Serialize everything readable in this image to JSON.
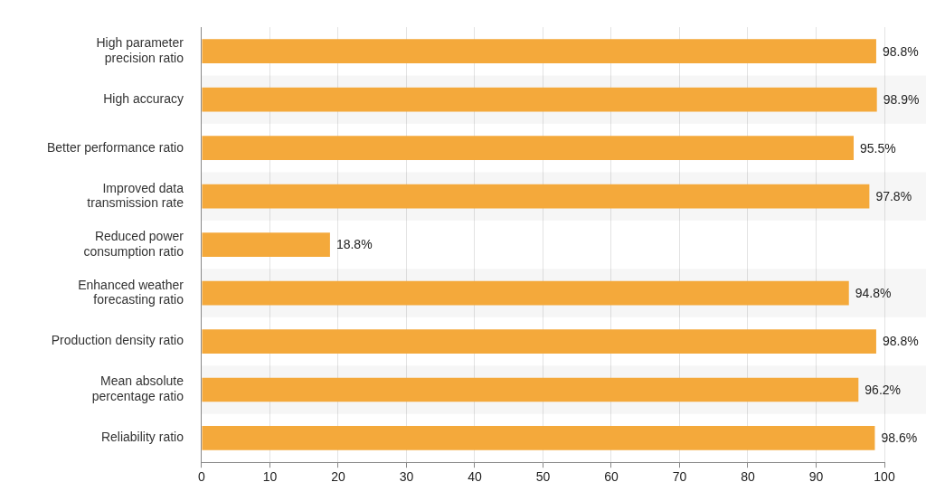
{
  "chart_data": {
    "type": "bar",
    "orientation": "horizontal",
    "categories": [
      "High parameter precision ratio",
      "High accuracy",
      "Better performance ratio",
      "Improved data transmission rate",
      "Reduced power consumption ratio",
      "Enhanced weather forecasting ratio",
      "Production density ratio",
      "Mean absolute percentage ratio",
      "Reliability ratio"
    ],
    "values": [
      98.8,
      98.9,
      95.5,
      97.8,
      18.8,
      94.8,
      98.8,
      96.2,
      98.6
    ],
    "value_labels": [
      "98.8%",
      "98.9%",
      "95.5%",
      "97.8%",
      "18.8%",
      "94.8%",
      "98.8%",
      "96.2%",
      "98.6%"
    ],
    "data_labels": true,
    "color": "#f4a93b",
    "xlim": [
      0,
      100
    ],
    "xticks": [
      0,
      10,
      20,
      30,
      40,
      50,
      60,
      70,
      80,
      90,
      100
    ],
    "grid": true
  }
}
